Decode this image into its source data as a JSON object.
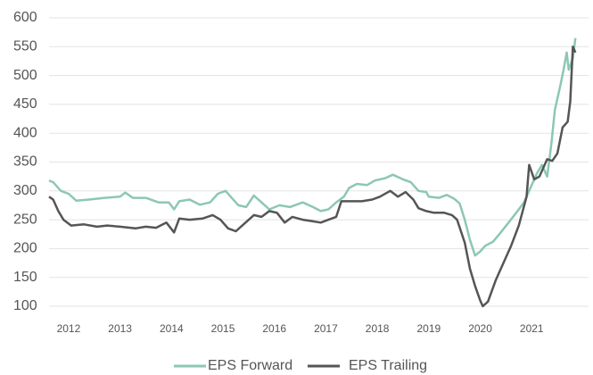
{
  "chart_data": {
    "type": "line",
    "xlim": [
      2011.62,
      2021.85
    ],
    "xticks": [
      2012,
      2013,
      2014,
      2015,
      2016,
      2017,
      2018,
      2019,
      2020,
      2021
    ],
    "ylim": [
      100,
      600
    ],
    "yticks": [
      100,
      150,
      200,
      250,
      300,
      350,
      400,
      450,
      500,
      550,
      600
    ],
    "grid": true,
    "legend": "bottom",
    "series": [
      {
        "name": "EPS Forward",
        "color": "#8cc7b5",
        "x": [
          2011.62,
          2011.7,
          2011.85,
          2012.0,
          2012.15,
          2012.4,
          2012.7,
          2013.0,
          2013.1,
          2013.25,
          2013.5,
          2013.75,
          2013.95,
          2014.05,
          2014.15,
          2014.35,
          2014.55,
          2014.75,
          2014.9,
          2015.05,
          2015.15,
          2015.3,
          2015.45,
          2015.6,
          2015.75,
          2015.9,
          2016.1,
          2016.3,
          2016.55,
          2016.75,
          2016.9,
          2017.05,
          2017.2,
          2017.35,
          2017.45,
          2017.6,
          2017.8,
          2017.95,
          2018.15,
          2018.3,
          2018.5,
          2018.65,
          2018.8,
          2018.95,
          2019.0,
          2019.2,
          2019.35,
          2019.5,
          2019.6,
          2019.7,
          2019.8,
          2019.9,
          2020.0,
          2020.1,
          2020.25,
          2020.4,
          2020.55,
          2020.7,
          2020.85,
          2021.0,
          2021.1,
          2021.2,
          2021.3,
          2021.38,
          2021.45,
          2021.55,
          2021.62,
          2021.68,
          2021.72,
          2021.8,
          2021.85
        ],
        "values": [
          318,
          315,
          300,
          295,
          283,
          285,
          288,
          290,
          297,
          288,
          288,
          280,
          280,
          268,
          282,
          285,
          276,
          280,
          295,
          300,
          290,
          275,
          272,
          292,
          280,
          268,
          275,
          272,
          280,
          272,
          265,
          268,
          280,
          290,
          305,
          312,
          310,
          318,
          322,
          328,
          320,
          315,
          300,
          298,
          290,
          288,
          293,
          286,
          278,
          250,
          215,
          188,
          195,
          205,
          212,
          228,
          245,
          262,
          280,
          310,
          330,
          345,
          325,
          380,
          440,
          480,
          510,
          540,
          510,
          530,
          565
        ]
      },
      {
        "name": "EPS Trailing",
        "color": "#555555",
        "x": [
          2011.62,
          2011.7,
          2011.8,
          2011.9,
          2012.05,
          2012.3,
          2012.55,
          2012.75,
          2013.0,
          2013.3,
          2013.5,
          2013.7,
          2013.9,
          2014.05,
          2014.15,
          2014.35,
          2014.6,
          2014.8,
          2014.95,
          2015.1,
          2015.25,
          2015.4,
          2015.6,
          2015.75,
          2015.9,
          2016.05,
          2016.2,
          2016.35,
          2016.55,
          2016.7,
          2016.9,
          2017.05,
          2017.2,
          2017.3,
          2017.5,
          2017.7,
          2017.9,
          2018.05,
          2018.25,
          2018.4,
          2018.55,
          2018.7,
          2018.8,
          2018.95,
          2019.1,
          2019.3,
          2019.45,
          2019.55,
          2019.7,
          2019.8,
          2019.9,
          2020.0,
          2020.05,
          2020.15,
          2020.3,
          2020.45,
          2020.6,
          2020.75,
          2020.9,
          2020.95,
          2021.05,
          2021.15,
          2021.3,
          2021.4,
          2021.5,
          2021.6,
          2021.7,
          2021.75,
          2021.8,
          2021.85
        ],
        "values": [
          290,
          285,
          265,
          250,
          240,
          242,
          238,
          240,
          238,
          235,
          238,
          236,
          245,
          228,
          252,
          250,
          252,
          258,
          250,
          235,
          230,
          242,
          258,
          255,
          265,
          262,
          245,
          255,
          250,
          248,
          245,
          250,
          255,
          282,
          282,
          282,
          285,
          290,
          300,
          290,
          298,
          285,
          270,
          265,
          262,
          262,
          258,
          250,
          210,
          165,
          135,
          110,
          100,
          108,
          145,
          175,
          205,
          240,
          290,
          345,
          320,
          325,
          355,
          352,
          365,
          410,
          420,
          455,
          550,
          540
        ]
      }
    ]
  }
}
